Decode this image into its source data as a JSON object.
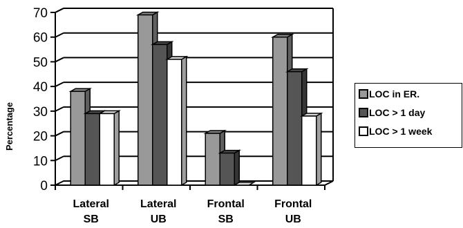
{
  "chart_data": {
    "type": "bar",
    "title": "",
    "xlabel": "",
    "ylabel": "Percentage",
    "ylim": [
      0,
      70
    ],
    "yticks": [
      0,
      10,
      20,
      30,
      40,
      50,
      60,
      70
    ],
    "categories": [
      [
        "Lateral",
        "SB"
      ],
      [
        "Lateral",
        "UB"
      ],
      [
        "Frontal",
        "SB"
      ],
      [
        "Frontal",
        "UB"
      ]
    ],
    "series": [
      {
        "name": "LOC in ER.",
        "color": "#999999",
        "values": [
          38,
          69,
          21,
          60
        ]
      },
      {
        "name": "LOC > 1 day",
        "color": "#555555",
        "values": [
          29,
          57,
          13,
          46
        ]
      },
      {
        "name": "LOC > 1 week",
        "color": "#ffffff",
        "values": [
          29,
          51,
          0,
          28
        ]
      }
    ],
    "grid": true,
    "legend": "right",
    "style": "3d-bar"
  }
}
